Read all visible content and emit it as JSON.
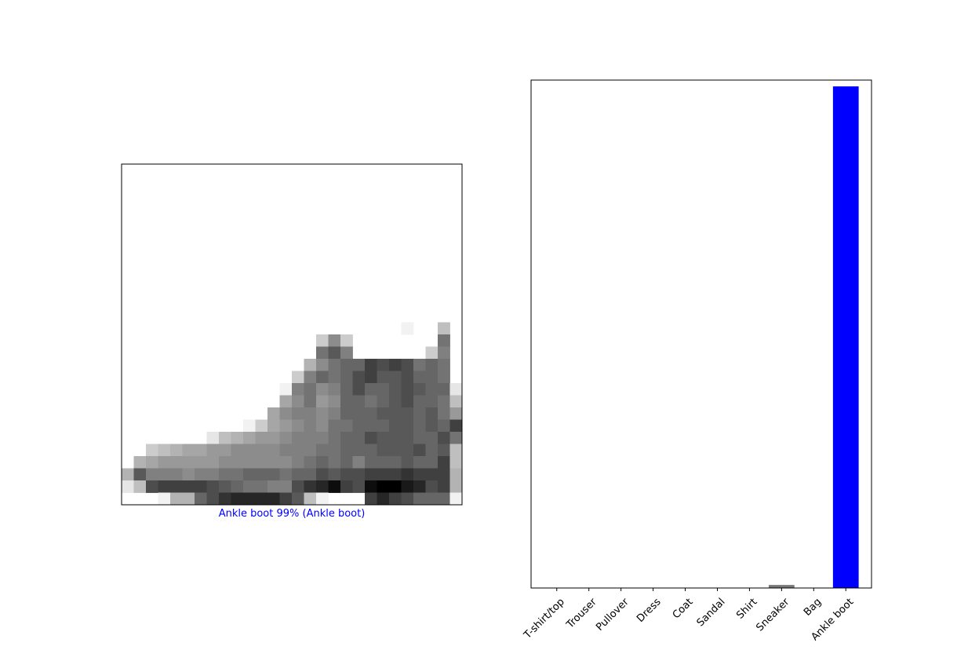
{
  "chart_data": [
    {
      "type": "heatmap",
      "description_caption": "Ankle boot 99% (Ankle boot)",
      "caption_color": "#0000ff",
      "colormap": "binary",
      "rows": 28,
      "cols": 28,
      "pixels": [
        [
          0,
          0,
          0,
          0,
          0,
          0,
          0,
          0,
          0,
          0,
          0,
          0,
          0,
          0,
          0,
          0,
          0,
          0,
          0,
          0,
          0,
          0,
          0,
          0,
          0,
          0,
          0,
          0
        ],
        [
          0,
          0,
          0,
          0,
          0,
          0,
          0,
          0,
          0,
          0,
          0,
          0,
          0,
          0,
          0,
          0,
          0,
          0,
          0,
          0,
          0,
          0,
          0,
          0,
          0,
          0,
          0,
          0
        ],
        [
          0,
          0,
          0,
          0,
          0,
          0,
          0,
          0,
          0,
          0,
          0,
          0,
          0,
          0,
          0,
          0,
          0,
          0,
          0,
          0,
          0,
          0,
          0,
          0,
          0,
          0,
          0,
          0
        ],
        [
          0,
          0,
          0,
          0,
          0,
          0,
          0,
          0,
          0,
          0,
          0,
          0,
          0,
          0,
          0,
          0,
          0,
          0,
          0,
          0,
          0,
          0,
          0,
          0,
          0,
          0,
          0,
          0
        ],
        [
          0,
          0,
          0,
          0,
          0,
          0,
          0,
          0,
          0,
          0,
          0,
          0,
          0,
          0,
          0,
          0,
          0,
          0,
          0,
          0,
          0,
          0,
          0,
          0,
          0,
          0,
          0,
          0
        ],
        [
          0,
          0,
          0,
          0,
          0,
          0,
          0,
          0,
          0,
          0,
          0,
          0,
          0,
          0,
          0,
          0,
          0,
          0,
          0,
          0,
          0,
          0,
          0,
          0,
          0,
          0,
          0,
          0
        ],
        [
          0,
          0,
          0,
          0,
          0,
          0,
          0,
          0,
          0,
          0,
          0,
          0,
          0,
          0,
          0,
          0,
          0,
          0,
          0,
          0,
          0,
          0,
          0,
          0,
          0,
          0,
          0,
          0
        ],
        [
          0,
          0,
          0,
          0,
          0,
          0,
          0,
          0,
          0,
          0,
          0,
          0,
          0,
          0,
          0,
          0,
          0,
          0,
          0,
          0,
          0,
          0,
          0,
          0,
          0,
          0,
          0,
          0
        ],
        [
          0,
          0,
          0,
          0,
          0,
          0,
          0,
          0,
          0,
          0,
          0,
          0,
          0,
          0,
          0,
          0,
          0,
          0,
          0,
          0,
          0,
          0,
          0,
          0,
          0,
          0,
          0,
          0
        ],
        [
          0,
          0,
          0,
          0,
          0,
          0,
          0,
          0,
          0,
          0,
          0,
          0,
          0,
          0,
          0,
          0,
          0,
          0,
          0,
          0,
          0,
          0,
          0,
          0,
          0,
          0,
          0,
          0
        ],
        [
          0,
          0,
          0,
          0,
          0,
          0,
          0,
          0,
          0,
          0,
          0,
          0,
          0,
          0,
          0,
          0,
          0,
          0,
          0,
          0,
          0,
          0,
          0,
          0,
          0,
          0,
          0,
          0
        ],
        [
          0,
          0,
          0,
          0,
          0,
          0,
          0,
          0,
          0,
          0,
          0,
          0,
          0,
          0,
          0,
          0,
          0,
          0,
          0,
          0,
          0,
          0,
          0,
          0,
          0,
          0,
          0,
          0
        ],
        [
          0,
          0,
          0,
          0,
          0,
          0,
          0,
          0,
          0,
          0,
          0,
          0,
          0,
          0,
          0,
          0,
          0,
          0,
          0,
          0,
          0,
          0,
          0,
          0,
          0,
          0,
          0,
          0
        ],
        [
          0,
          0,
          0,
          0,
          0,
          0,
          0,
          0,
          0,
          0,
          0,
          0,
          0,
          0,
          0,
          0,
          0,
          0,
          0,
          0,
          0,
          0,
          0,
          0.05,
          0,
          0,
          0.25,
          0
        ],
        [
          0,
          0,
          0,
          0,
          0,
          0,
          0,
          0,
          0,
          0,
          0,
          0,
          0,
          0,
          0,
          0,
          0.2,
          0.45,
          0.2,
          0,
          0,
          0,
          0,
          0,
          0,
          0,
          0.55,
          0
        ],
        [
          0,
          0,
          0,
          0,
          0,
          0,
          0,
          0,
          0,
          0,
          0,
          0,
          0,
          0,
          0,
          0,
          0.55,
          0.65,
          0.5,
          0,
          0,
          0,
          0,
          0,
          0,
          0.2,
          0.5,
          0
        ],
        [
          0,
          0,
          0,
          0,
          0,
          0,
          0,
          0,
          0,
          0,
          0,
          0,
          0,
          0,
          0,
          0.3,
          0.45,
          0.55,
          0.6,
          0.6,
          0.75,
          0.7,
          0.75,
          0.7,
          0.55,
          0.6,
          0.55,
          0
        ],
        [
          0,
          0,
          0,
          0,
          0,
          0,
          0,
          0,
          0,
          0,
          0,
          0,
          0,
          0,
          0.2,
          0.5,
          0.6,
          0.55,
          0.6,
          0.7,
          0.75,
          0.65,
          0.65,
          0.7,
          0.6,
          0.6,
          0.55,
          0
        ],
        [
          0,
          0,
          0,
          0,
          0,
          0,
          0,
          0,
          0,
          0,
          0,
          0,
          0,
          0.05,
          0.5,
          0.55,
          0.45,
          0.5,
          0.6,
          0.7,
          0.6,
          0.6,
          0.65,
          0.7,
          0.65,
          0.6,
          0.6,
          0.1
        ],
        [
          0,
          0,
          0,
          0,
          0,
          0,
          0,
          0,
          0,
          0,
          0,
          0,
          0,
          0.35,
          0.45,
          0.55,
          0.4,
          0.45,
          0.6,
          0.6,
          0.55,
          0.6,
          0.65,
          0.7,
          0.6,
          0.6,
          0.55,
          0.25
        ],
        [
          0,
          0,
          0,
          0,
          0,
          0,
          0,
          0,
          0,
          0,
          0,
          0,
          0.35,
          0.45,
          0.5,
          0.5,
          0.45,
          0.5,
          0.6,
          0.6,
          0.6,
          0.65,
          0.65,
          0.65,
          0.6,
          0.65,
          0.55,
          0.4
        ],
        [
          0,
          0,
          0,
          0,
          0,
          0,
          0,
          0,
          0,
          0,
          0.05,
          0.2,
          0.35,
          0.4,
          0.45,
          0.5,
          0.45,
          0.55,
          0.55,
          0.6,
          0.6,
          0.6,
          0.65,
          0.65,
          0.6,
          0.65,
          0.6,
          0.75
        ],
        [
          0,
          0,
          0,
          0,
          0,
          0,
          0,
          0.1,
          0.25,
          0.3,
          0.35,
          0.4,
          0.4,
          0.45,
          0.5,
          0.5,
          0.5,
          0.55,
          0.6,
          0.6,
          0.7,
          0.65,
          0.65,
          0.65,
          0.6,
          0.6,
          0.7,
          0.55
        ],
        [
          0,
          0,
          0.2,
          0.25,
          0.3,
          0.35,
          0.35,
          0.4,
          0.4,
          0.45,
          0.45,
          0.45,
          0.45,
          0.5,
          0.5,
          0.5,
          0.55,
          0.55,
          0.6,
          0.6,
          0.6,
          0.65,
          0.65,
          0.65,
          0.7,
          0.6,
          0.65,
          0.25
        ],
        [
          0,
          0.3,
          0.35,
          0.4,
          0.4,
          0.4,
          0.4,
          0.4,
          0.45,
          0.45,
          0.45,
          0.45,
          0.45,
          0.45,
          0.5,
          0.55,
          0.6,
          0.55,
          0.6,
          0.5,
          0.6,
          0.6,
          0.6,
          0.65,
          0.6,
          0.6,
          0.75,
          0.25
        ],
        [
          0.3,
          0.65,
          0.5,
          0.5,
          0.5,
          0.45,
          0.5,
          0.5,
          0.55,
          0.55,
          0.6,
          0.6,
          0.6,
          0.55,
          0.6,
          0.6,
          0.7,
          0.65,
          0.7,
          0.7,
          0.75,
          0.75,
          0.75,
          0.8,
          0.75,
          0.75,
          0.75,
          0.3
        ],
        [
          0.1,
          0.25,
          0.7,
          0.75,
          0.75,
          0.75,
          0.75,
          0.7,
          0.65,
          0.6,
          0.55,
          0.55,
          0.5,
          0.5,
          0.7,
          0.8,
          0.85,
          0.95,
          0.75,
          0.7,
          0.95,
          1.0,
          1.0,
          0.9,
          0.85,
          0.7,
          0.75,
          0.3
        ],
        [
          0,
          0,
          0,
          0.05,
          0.3,
          0.3,
          0.6,
          0.7,
          0.8,
          0.85,
          0.85,
          0.85,
          0.85,
          0.75,
          0.65,
          0.25,
          0.05,
          0,
          0,
          0,
          0.75,
          0.85,
          0.75,
          0.7,
          0.6,
          0.6,
          0.6,
          0.05
        ]
      ]
    },
    {
      "type": "bar",
      "categories": [
        "T-shirt/top",
        "Trouser",
        "Pullover",
        "Dress",
        "Coat",
        "Sandal",
        "Shirt",
        "Sneaker",
        "Bag",
        "Ankle boot"
      ],
      "values": [
        0.0,
        0.0,
        0.0,
        0.0,
        0.0,
        0.0,
        0.0,
        0.006,
        0.0,
        0.994
      ],
      "bar_colors": [
        "#777777",
        "#777777",
        "#777777",
        "#777777",
        "#777777",
        "#777777",
        "#777777",
        "#777777",
        "#777777",
        "#0000ff"
      ],
      "ylim": [
        0,
        1
      ],
      "title": "",
      "xlabel": "",
      "ylabel": ""
    }
  ]
}
